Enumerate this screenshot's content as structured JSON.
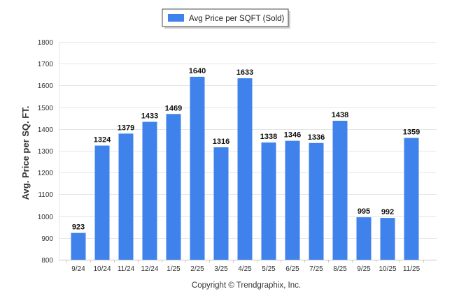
{
  "chart_data": {
    "type": "bar",
    "categories": [
      "9/24",
      "10/24",
      "11/24",
      "12/24",
      "1/25",
      "2/25",
      "3/25",
      "4/25",
      "5/25",
      "6/25",
      "7/25",
      "8/25",
      "9/25",
      "10/25",
      "11/25"
    ],
    "series": [
      {
        "name": "Avg Price per SQFT (Sold)",
        "values": [
          923,
          1324,
          1379,
          1433,
          1469,
          1640,
          1316,
          1633,
          1338,
          1346,
          1336,
          1438,
          995,
          992,
          1359
        ]
      }
    ],
    "ylabel": "Avg. Price per SQ. FT.",
    "xlabel": "",
    "ylim": [
      800,
      1800
    ],
    "yticks": [
      800,
      900,
      1000,
      1100,
      1200,
      1300,
      1400,
      1500,
      1600,
      1700,
      1800
    ],
    "grid": true,
    "legend_position": "top-center",
    "data_labels": true,
    "bar_color": "#3f82ec"
  },
  "footer": {
    "copyright": "Copyright © Trendgraphix, Inc."
  }
}
